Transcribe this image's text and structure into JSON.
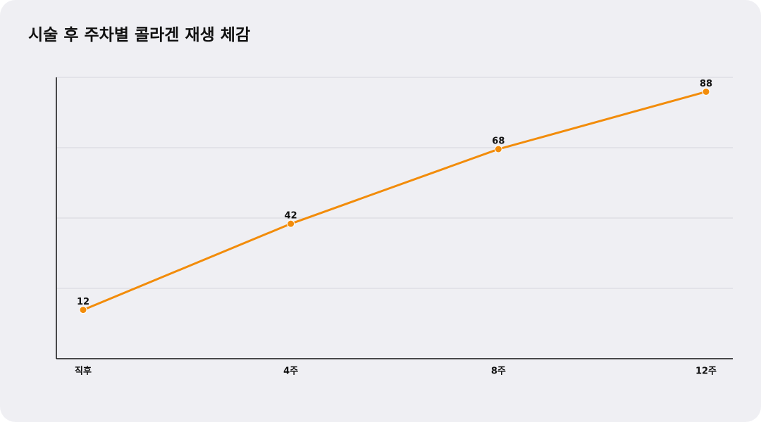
{
  "chart_data": {
    "type": "line",
    "title": "시술 후 주차별 콜라겐 재생 체감",
    "categories": [
      "직후",
      "4주",
      "8주",
      "12주"
    ],
    "values": [
      12,
      42,
      68,
      88
    ],
    "color": "#f28c0a",
    "ylim": [
      -5,
      93
    ],
    "grid": true
  }
}
